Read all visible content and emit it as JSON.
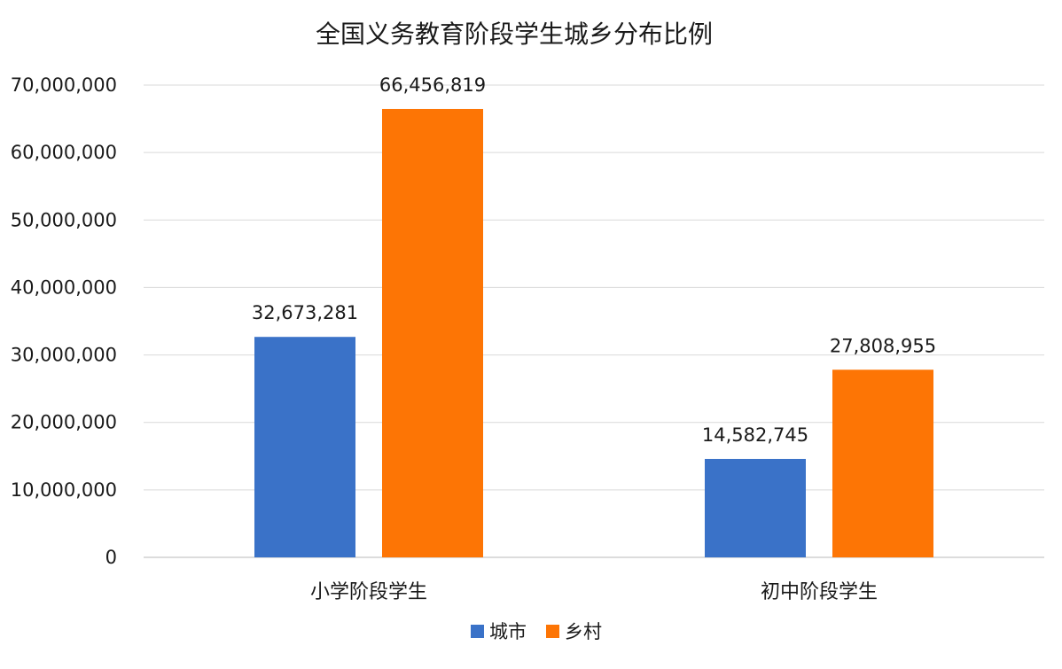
{
  "chart_data": {
    "type": "bar",
    "title": "全国义务教育阶段学生城乡分布比例",
    "categories": [
      "小学阶段学生",
      "初中阶段学生"
    ],
    "series": [
      {
        "name": "城市",
        "color": "#3a72c8",
        "values": [
          32673281,
          14582745
        ],
        "labels": [
          "32,673,281",
          "14,582,745"
        ]
      },
      {
        "name": "乡村",
        "color": "#fd7505",
        "values": [
          66456819,
          27808955
        ],
        "labels": [
          "66,456,819",
          "27,808,955"
        ]
      }
    ],
    "ylim": [
      0,
      70000000
    ],
    "yticks": [
      0,
      10000000,
      20000000,
      30000000,
      40000000,
      50000000,
      60000000,
      70000000
    ],
    "ytick_labels": [
      "0",
      "10,000,000",
      "20,000,000",
      "30,000,000",
      "40,000,000",
      "50,000,000",
      "60,000,000",
      "70,000,000"
    ],
    "grid": true,
    "legend": "bottom",
    "xlabel": "",
    "ylabel": ""
  }
}
